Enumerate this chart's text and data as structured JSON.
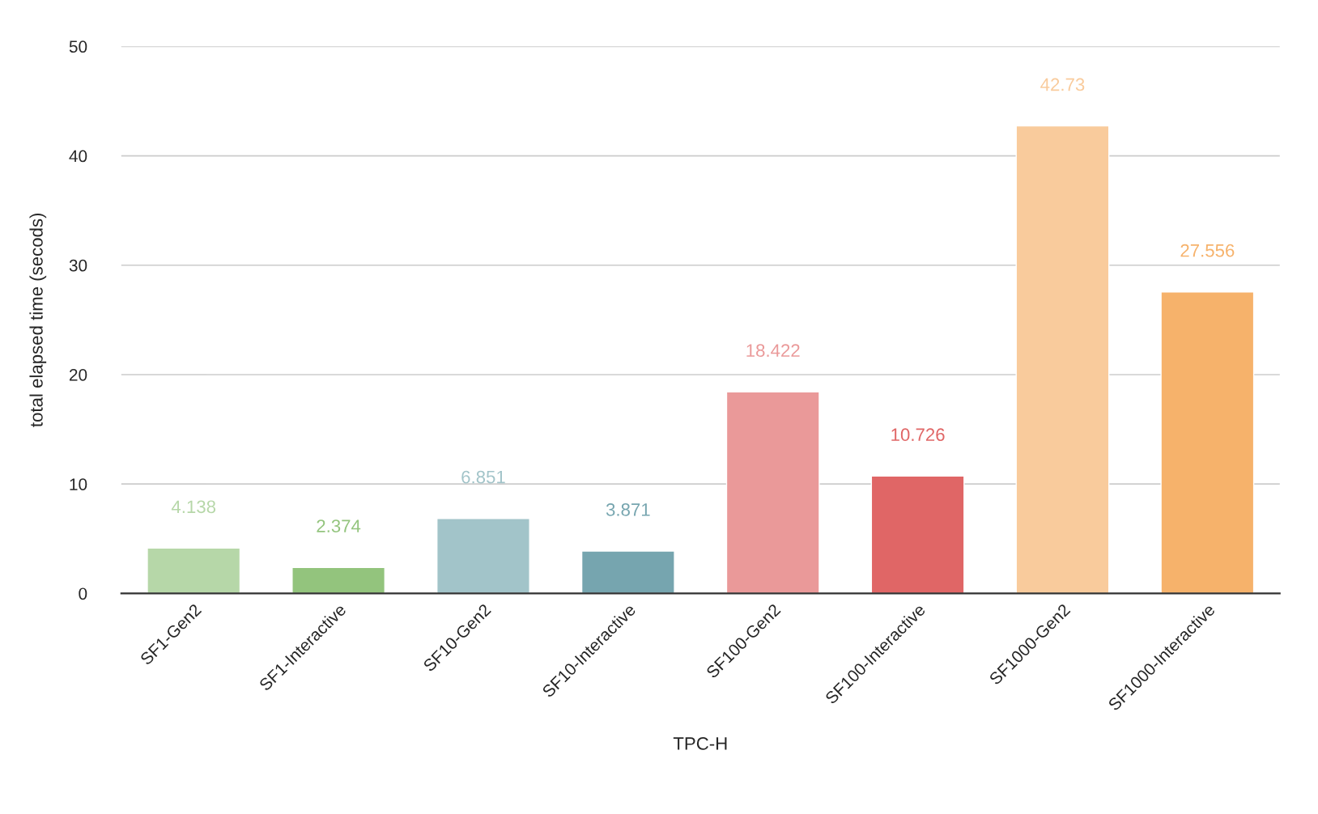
{
  "chart_data": {
    "type": "bar",
    "xlabel": "TPC-H",
    "ylabel": "total elapsed time (secods)",
    "categories": [
      "SF1-Gen2",
      "SF1-Interactive",
      "SF10-Gen2",
      "SF10-Interactive",
      "SF100-Gen2",
      "SF100-Interactive",
      "SF1000-Gen2",
      "SF1000-Interactive"
    ],
    "values": [
      4.138,
      2.374,
      6.851,
      3.871,
      18.422,
      10.726,
      42.73,
      27.556
    ],
    "colors": [
      "#b6d7a8",
      "#93c47d",
      "#a2c4c9",
      "#76a5af",
      "#ea9999",
      "#e06666",
      "#f9cb9c",
      "#f6b26b"
    ],
    "ylim": [
      0,
      50
    ],
    "yticks": [
      0,
      10,
      20,
      30,
      40,
      50
    ],
    "grid": "y",
    "data_labels": true
  }
}
